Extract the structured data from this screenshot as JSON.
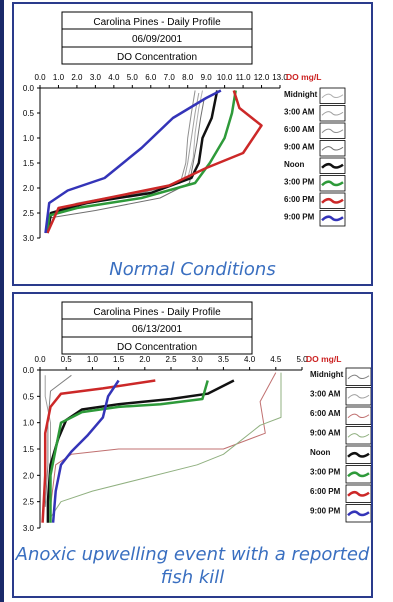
{
  "charts": [
    {
      "caption": "Normal Conditions",
      "chart_data": {
        "type": "line",
        "title": "Carolina Pines - Daily Profile",
        "date": "06/09/2001",
        "subtitle": "DO Concentration",
        "unit_label": "DO mg/L",
        "xlim": [
          0,
          13
        ],
        "ylim": [
          0,
          3
        ],
        "xticks": [
          "0.0",
          "1.0",
          "2.0",
          "3.0",
          "4.0",
          "5.0",
          "6.0",
          "7.0",
          "8.0",
          "9.0",
          "10.0",
          "11.0",
          "12.0",
          "13.0"
        ],
        "yticks": [
          "0.0",
          "0.5",
          "1.0",
          "1.5",
          "2.0",
          "2.5",
          "3.0"
        ],
        "y_inverted": true,
        "legend_position": "right",
        "series": [
          {
            "name": "Midnight",
            "color": "#b0b0b0",
            "width": 1,
            "points": [
              [
                8.8,
                0.05
              ],
              [
                8.6,
                0.4
              ],
              [
                8.4,
                0.9
              ],
              [
                8.3,
                1.4
              ],
              [
                8.0,
                1.8
              ],
              [
                6.5,
                2.0
              ],
              [
                2.0,
                2.3
              ],
              [
                0.6,
                2.5
              ],
              [
                0.3,
                2.9
              ]
            ]
          },
          {
            "name": "3:00 AM",
            "color": "#a0a0a0",
            "width": 1,
            "points": [
              [
                8.6,
                0.1
              ],
              [
                8.4,
                0.5
              ],
              [
                8.2,
                1.0
              ],
              [
                8.0,
                1.5
              ],
              [
                7.8,
                1.85
              ],
              [
                6.0,
                2.05
              ],
              [
                2.0,
                2.35
              ],
              [
                0.5,
                2.5
              ],
              [
                0.3,
                2.9
              ]
            ]
          },
          {
            "name": "6:00 AM",
            "color": "#909090",
            "width": 1,
            "points": [
              [
                8.4,
                0.05
              ],
              [
                8.2,
                0.5
              ],
              [
                8.0,
                1.0
              ],
              [
                7.9,
                1.5
              ],
              [
                7.6,
                1.9
              ],
              [
                5.5,
                2.1
              ],
              [
                1.5,
                2.4
              ],
              [
                0.4,
                2.55
              ],
              [
                0.3,
                2.9
              ]
            ]
          },
          {
            "name": "9:00 AM",
            "color": "#707070",
            "width": 1,
            "points": [
              [
                8.9,
                0.2
              ],
              [
                8.7,
                0.6
              ],
              [
                8.5,
                1.1
              ],
              [
                8.3,
                1.5
              ],
              [
                8.1,
                1.9
              ],
              [
                6.5,
                2.2
              ],
              [
                3.0,
                2.45
              ],
              [
                0.5,
                2.6
              ],
              [
                0.3,
                2.9
              ]
            ]
          },
          {
            "name": "Noon",
            "color": "#111111",
            "width": 2.5,
            "points": [
              [
                9.6,
                0.05
              ],
              [
                9.3,
                0.6
              ],
              [
                8.8,
                1.0
              ],
              [
                8.6,
                1.5
              ],
              [
                8.2,
                1.8
              ],
              [
                6.0,
                2.1
              ],
              [
                2.5,
                2.3
              ],
              [
                0.6,
                2.5
              ],
              [
                0.4,
                2.9
              ]
            ]
          },
          {
            "name": "3:00 PM",
            "color": "#2e9a3a",
            "width": 2.5,
            "points": [
              [
                10.6,
                0.05
              ],
              [
                10.4,
                0.5
              ],
              [
                10.0,
                1.0
              ],
              [
                9.2,
                1.5
              ],
              [
                8.4,
                1.9
              ],
              [
                5.5,
                2.2
              ],
              [
                2.0,
                2.4
              ],
              [
                0.5,
                2.55
              ],
              [
                0.4,
                2.9
              ]
            ]
          },
          {
            "name": "6:00 PM",
            "color": "#cc2828",
            "width": 2.5,
            "points": [
              [
                10.5,
                0.05
              ],
              [
                10.8,
                0.4
              ],
              [
                12.0,
                0.75
              ],
              [
                11.0,
                1.3
              ],
              [
                9.0,
                1.6
              ],
              [
                7.0,
                1.95
              ],
              [
                3.0,
                2.25
              ],
              [
                1.0,
                2.4
              ],
              [
                0.4,
                2.9
              ]
            ]
          },
          {
            "name": "9:00 PM",
            "color": "#3434b8",
            "width": 2.5,
            "points": [
              [
                9.8,
                0.05
              ],
              [
                9.0,
                0.2
              ],
              [
                7.2,
                0.6
              ],
              [
                5.5,
                1.2
              ],
              [
                3.5,
                1.8
              ],
              [
                1.5,
                2.05
              ],
              [
                0.5,
                2.3
              ],
              [
                0.3,
                2.9
              ]
            ]
          }
        ]
      }
    },
    {
      "caption": "Anoxic upwelling event with a reported fish kill",
      "chart_data": {
        "type": "line",
        "title": "Carolina Pines - Daily Profile",
        "date": "06/13/2001",
        "subtitle": "DO Concentration",
        "unit_label": "DO mg/L",
        "xlim": [
          0,
          5
        ],
        "ylim": [
          0,
          3
        ],
        "xticks": [
          "0.0",
          "0.5",
          "1.0",
          "1.5",
          "2.0",
          "2.5",
          "3.0",
          "3.5",
          "4.0",
          "4.5",
          "5.0"
        ],
        "yticks": [
          "0.0",
          "0.5",
          "1.0",
          "1.5",
          "2.0",
          "2.5",
          "3.0"
        ],
        "y_inverted": true,
        "legend_position": "right",
        "series": [
          {
            "name": "Midnight",
            "color": "#808080",
            "width": 1,
            "points": [
              [
                0.6,
                0.1
              ],
              [
                0.2,
                0.4
              ],
              [
                0.15,
                1.0
              ],
              [
                0.15,
                1.8
              ],
              [
                0.1,
                2.6
              ]
            ]
          },
          {
            "name": "3:00 AM",
            "color": "#a0a0a0",
            "width": 1,
            "points": [
              [
                0.1,
                0.1
              ],
              [
                0.1,
                0.5
              ],
              [
                0.2,
                1.0
              ],
              [
                0.2,
                1.8
              ],
              [
                0.15,
                2.6
              ]
            ]
          },
          {
            "name": "6:00 AM",
            "color": "#c07070",
            "width": 1,
            "points": [
              [
                4.5,
                0.05
              ],
              [
                4.2,
                0.6
              ],
              [
                4.3,
                1.2
              ],
              [
                3.5,
                1.5
              ],
              [
                1.5,
                1.5
              ],
              [
                0.6,
                1.6
              ],
              [
                0.3,
                1.8
              ],
              [
                0.2,
                2.6
              ]
            ]
          },
          {
            "name": "9:00 AM",
            "color": "#90b080",
            "width": 1,
            "points": [
              [
                4.6,
                0.05
              ],
              [
                4.6,
                0.9
              ],
              [
                4.2,
                1.05
              ],
              [
                3.5,
                1.6
              ],
              [
                3.0,
                1.8
              ],
              [
                2.0,
                2.05
              ],
              [
                1.0,
                2.3
              ],
              [
                0.4,
                2.5
              ],
              [
                0.2,
                2.8
              ]
            ]
          },
          {
            "name": "Noon",
            "color": "#111111",
            "width": 2.5,
            "points": [
              [
                3.7,
                0.2
              ],
              [
                3.2,
                0.45
              ],
              [
                2.5,
                0.55
              ],
              [
                1.5,
                0.65
              ],
              [
                0.8,
                0.75
              ],
              [
                0.5,
                0.95
              ],
              [
                0.35,
                1.3
              ],
              [
                0.2,
                1.8
              ],
              [
                0.15,
                2.5
              ],
              [
                0.15,
                2.9
              ]
            ]
          },
          {
            "name": "3:00 PM",
            "color": "#2e9a3a",
            "width": 2.5,
            "points": [
              [
                3.2,
                0.2
              ],
              [
                3.1,
                0.55
              ],
              [
                2.3,
                0.65
              ],
              [
                1.5,
                0.7
              ],
              [
                0.8,
                0.8
              ],
              [
                0.4,
                1.0
              ],
              [
                0.3,
                1.5
              ],
              [
                0.2,
                2.0
              ],
              [
                0.2,
                2.9
              ]
            ]
          },
          {
            "name": "6:00 PM",
            "color": "#cc2828",
            "width": 2.5,
            "points": [
              [
                2.2,
                0.2
              ],
              [
                1.2,
                0.35
              ],
              [
                0.4,
                0.45
              ],
              [
                0.2,
                0.7
              ],
              [
                0.1,
                1.2
              ],
              [
                0.1,
                2.0
              ],
              [
                0.05,
                2.9
              ]
            ]
          },
          {
            "name": "9:00 PM",
            "color": "#3434b8",
            "width": 2.5,
            "points": [
              [
                1.5,
                0.2
              ],
              [
                1.3,
                0.5
              ],
              [
                1.2,
                0.9
              ],
              [
                0.9,
                1.25
              ],
              [
                0.6,
                1.55
              ],
              [
                0.4,
                1.8
              ],
              [
                0.3,
                2.3
              ],
              [
                0.25,
                2.9
              ]
            ]
          }
        ]
      }
    }
  ]
}
